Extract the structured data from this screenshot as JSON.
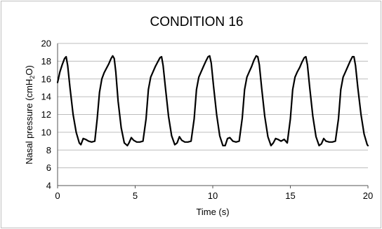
{
  "chart_data": {
    "type": "line",
    "title": "CONDITION 16",
    "xlabel": "Time (s)",
    "ylabel_main": "Nasal pressure (cmH",
    "ylabel_sub": "2",
    "ylabel_end": "O)",
    "xlim": [
      0,
      20
    ],
    "ylim": [
      4,
      20
    ],
    "xticks": [
      0,
      5,
      10,
      15,
      20
    ],
    "yticks": [
      4,
      6,
      8,
      10,
      12,
      14,
      16,
      18,
      20
    ],
    "grid": "horizontal",
    "line_color": "#000000",
    "series": [
      {
        "x": [
          0.0,
          0.15,
          0.3,
          0.45,
          0.55,
          0.65,
          0.8,
          1.0,
          1.2,
          1.4,
          1.5,
          1.65,
          1.8,
          2.0,
          2.2,
          2.4,
          2.55,
          2.7,
          2.85,
          3.0,
          3.15,
          3.3,
          3.45,
          3.55,
          3.65,
          3.75,
          3.9,
          4.1,
          4.3,
          4.5,
          4.6,
          4.75,
          4.9,
          5.1,
          5.3,
          5.5,
          5.7,
          5.85,
          6.0,
          6.15,
          6.3,
          6.45,
          6.6,
          6.7,
          6.8,
          6.95,
          7.15,
          7.35,
          7.55,
          7.7,
          7.85,
          8.0,
          8.2,
          8.4,
          8.6,
          8.8,
          8.95,
          9.1,
          9.25,
          9.4,
          9.55,
          9.7,
          9.8,
          9.9,
          10.05,
          10.25,
          10.45,
          10.65,
          10.8,
          10.95,
          11.1,
          11.3,
          11.5,
          11.7,
          11.9,
          12.05,
          12.2,
          12.35,
          12.5,
          12.65,
          12.8,
          12.9,
          13.0,
          13.15,
          13.35,
          13.55,
          13.75,
          13.9,
          14.05,
          14.2,
          14.4,
          14.6,
          14.8,
          15.0,
          15.15,
          15.3,
          15.45,
          15.6,
          15.75,
          15.9,
          16.0,
          16.1,
          16.25,
          16.45,
          16.65,
          16.85,
          17.0,
          17.15,
          17.3,
          17.5,
          17.7,
          17.9,
          18.1,
          18.25,
          18.4,
          18.55,
          18.7,
          18.85,
          19.0,
          19.1,
          19.2,
          19.35,
          19.55,
          19.75,
          19.95,
          20.0
        ],
        "y": [
          15.6,
          16.8,
          17.6,
          18.3,
          18.5,
          17.5,
          15.0,
          12.0,
          10.0,
          8.8,
          8.6,
          9.3,
          9.2,
          9.0,
          8.9,
          9.0,
          11.5,
          14.5,
          16.0,
          16.7,
          17.2,
          17.7,
          18.3,
          18.6,
          18.3,
          16.8,
          13.5,
          10.5,
          8.8,
          8.5,
          8.8,
          9.4,
          9.1,
          8.9,
          8.9,
          9.0,
          11.5,
          14.8,
          16.2,
          16.8,
          17.4,
          17.9,
          18.4,
          18.5,
          17.5,
          15.0,
          11.8,
          9.6,
          8.6,
          8.8,
          9.5,
          9.1,
          8.9,
          8.9,
          9.0,
          11.5,
          14.8,
          16.2,
          16.8,
          17.4,
          18.0,
          18.5,
          18.6,
          17.8,
          15.2,
          12.0,
          9.6,
          8.5,
          8.5,
          9.3,
          9.4,
          9.0,
          8.9,
          9.0,
          11.6,
          14.8,
          16.2,
          16.8,
          17.4,
          18.1,
          18.6,
          18.5,
          17.6,
          15.0,
          11.8,
          9.5,
          8.5,
          8.8,
          9.3,
          9.2,
          9.0,
          9.2,
          8.8,
          11.5,
          14.8,
          16.2,
          16.8,
          17.3,
          17.9,
          18.4,
          18.5,
          17.6,
          15.0,
          11.8,
          9.5,
          8.5,
          8.7,
          9.3,
          9.0,
          8.9,
          8.9,
          9.0,
          11.5,
          14.8,
          16.2,
          16.8,
          17.4,
          18.0,
          18.5,
          18.5,
          17.5,
          15.0,
          12.0,
          9.8,
          8.6,
          8.5
        ]
      }
    ]
  }
}
